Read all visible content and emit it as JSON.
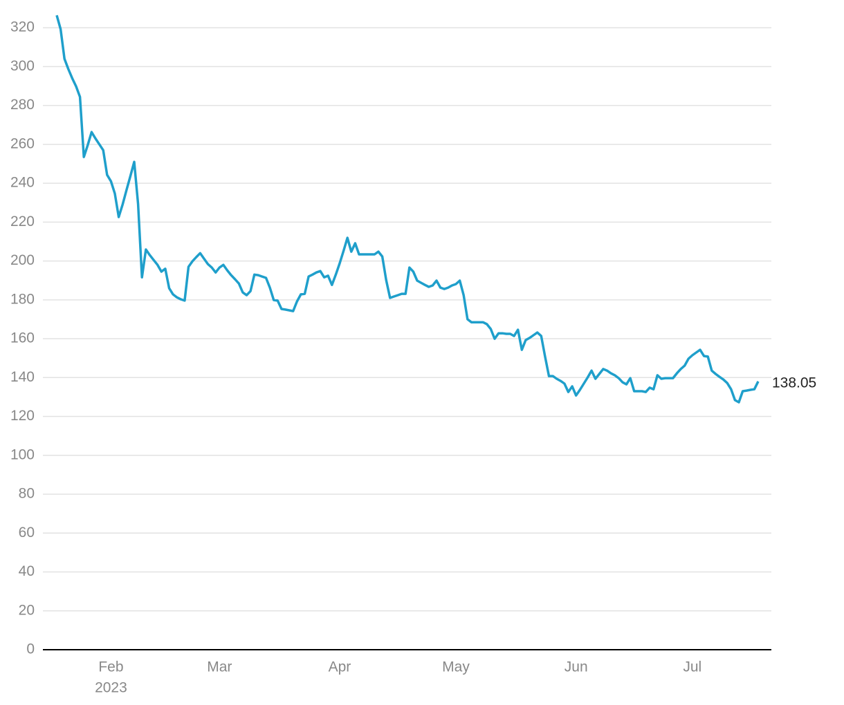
{
  "chart_data": {
    "type": "line",
    "categories": [
      null,
      null,
      null,
      null,
      null,
      null,
      null,
      null,
      null,
      null,
      null,
      null,
      null,
      null,
      "Feb",
      null,
      null,
      null,
      null,
      null,
      null,
      null,
      null,
      null,
      null,
      null,
      null,
      null,
      null,
      null,
      null,
      null,
      null,
      null,
      null,
      null,
      null,
      null,
      null,
      null,
      null,
      null,
      "Mar",
      null,
      null,
      null,
      null,
      null,
      null,
      null,
      null,
      null,
      null,
      null,
      null,
      null,
      null,
      null,
      null,
      null,
      null,
      null,
      null,
      null,
      null,
      null,
      null,
      null,
      null,
      null,
      null,
      null,
      null,
      "Apr",
      null,
      null,
      null,
      null,
      null,
      null,
      null,
      null,
      null,
      null,
      null,
      null,
      null,
      null,
      null,
      null,
      null,
      null,
      null,
      null,
      null,
      null,
      null,
      null,
      null,
      null,
      null,
      null,
      null,
      "May",
      null,
      null,
      null,
      null,
      null,
      null,
      null,
      null,
      null,
      null,
      null,
      null,
      null,
      null,
      null,
      null,
      null,
      null,
      null,
      null,
      null,
      null,
      null,
      null,
      null,
      null,
      null,
      null,
      null,
      null,
      "Jun",
      null,
      null,
      null,
      null,
      null,
      null,
      null,
      null,
      null,
      null,
      null,
      null,
      null,
      null,
      null,
      null,
      null,
      null,
      null,
      null,
      null,
      null,
      null,
      null,
      null,
      null,
      null,
      null,
      null,
      "Jul",
      null,
      null,
      null,
      null,
      null,
      null,
      null,
      null,
      null,
      null,
      null,
      null,
      null,
      null,
      null,
      null,
      null
    ],
    "year": "2023",
    "series": [
      {
        "color": "#1f9fcb",
        "values": [
          326.4,
          319.3,
          304,
          298.7,
          294,
          289.8,
          284.4,
          253.5,
          259.6,
          266.3,
          263,
          260,
          257,
          244.3,
          241,
          234.7,
          222.6,
          229,
          236.4,
          243.6,
          251,
          229.3,
          191.6,
          205.9,
          203,
          200.5,
          198,
          194.5,
          196,
          186,
          182.8,
          181.3,
          180.3,
          179.6,
          197,
          199.8,
          202,
          204,
          201.2,
          198.4,
          196.6,
          194.1,
          196.6,
          198,
          195.2,
          192.7,
          190.6,
          188.4,
          183.8,
          182.4,
          184.5,
          193,
          192.7,
          192,
          191.3,
          186.3,
          179.9,
          179.6,
          175.3,
          175,
          174.6,
          174.2,
          179.2,
          182.8,
          183.1,
          192,
          193,
          194.1,
          194.8,
          191.6,
          192.4,
          187.7,
          193,
          198.8,
          205.2,
          211.9,
          204.8,
          209.1,
          203.4,
          203.4,
          203.4,
          203.4,
          203.4,
          204.8,
          202.3,
          190.2,
          181,
          181.7,
          182.4,
          183.1,
          183.1,
          196.6,
          194.5,
          189.9,
          188.8,
          187.7,
          186.7,
          187.4,
          189.9,
          186.3,
          185.6,
          186.3,
          187.4,
          188.1,
          189.9,
          182.4,
          170,
          168.5,
          168.5,
          168.5,
          168.5,
          167.5,
          165,
          160,
          162.8,
          162.8,
          162.5,
          162.5,
          161.4,
          164.6,
          154.3,
          159.3,
          160.4,
          161.8,
          163.2,
          161.4,
          150.8,
          140.8,
          140.8,
          139.4,
          138.3,
          136.9,
          132.6,
          135.5,
          130.8,
          133.7,
          136.9,
          140.1,
          143.6,
          139.4,
          141.9,
          144.4,
          143.6,
          142.2,
          141.2,
          139.7,
          137.6,
          136.5,
          139.7,
          133,
          133,
          133,
          132.6,
          134.8,
          134,
          141.2,
          139.4,
          139.7,
          139.7,
          139.7,
          142.2,
          144.4,
          146.1,
          149.7,
          151.5,
          152.9,
          154.3,
          151.1,
          150.8,
          143.6,
          141.9,
          140.4,
          139,
          137.2,
          134,
          128.4,
          127.3,
          133,
          133.3,
          133.7,
          134,
          138.05
        ]
      }
    ],
    "ylim": [
      0,
      330
    ],
    "yticks": [
      0,
      20,
      40,
      60,
      80,
      100,
      120,
      140,
      160,
      180,
      200,
      220,
      240,
      260,
      280,
      300,
      320
    ],
    "grid": true
  }
}
